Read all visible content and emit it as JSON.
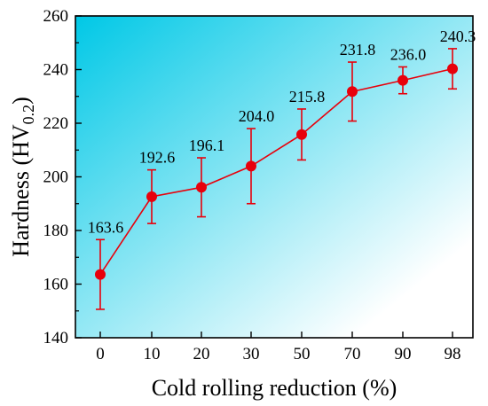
{
  "chart_data": {
    "type": "line",
    "title": "",
    "xlabel": "Cold rolling reduction (%)",
    "ylabel_main": "Hardness (HV",
    "ylabel_sub": "0.2",
    "ylabel_close": ")",
    "categories": [
      "0",
      "10",
      "20",
      "30",
      "50",
      "70",
      "90",
      "98"
    ],
    "ylim": [
      140,
      260
    ],
    "yticks": [
      140,
      160,
      180,
      200,
      220,
      240,
      260
    ],
    "grid": false,
    "background_gradient": [
      "#00c8e6",
      "#ffffff"
    ],
    "series": [
      {
        "color": "#e8000b",
        "values": [
          163.6,
          192.6,
          196.1,
          204.0,
          215.8,
          231.8,
          236.0,
          240.3
        ],
        "labels": [
          "163.6",
          "192.6",
          "196.1",
          "204.0",
          "215.8",
          "231.8",
          "236.0",
          "240.3"
        ],
        "error": [
          13,
          10,
          11,
          14,
          9.5,
          11,
          5,
          7.5
        ]
      }
    ]
  }
}
